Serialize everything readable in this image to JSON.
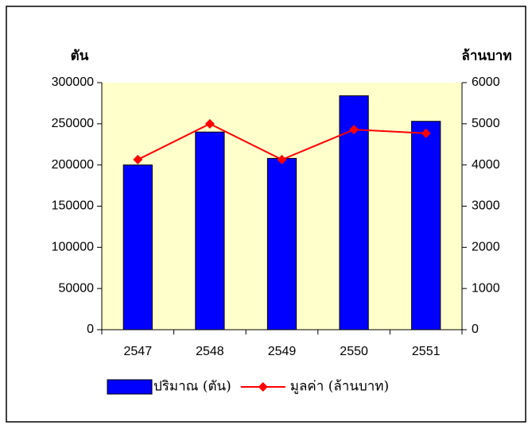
{
  "chart_data": {
    "type": "bar_line",
    "y_label": "ตัน",
    "y2_label": "ล้านบาท",
    "categories": [
      "2547",
      "2548",
      "2549",
      "2550",
      "2551"
    ],
    "series": [
      {
        "name": "ปริมาณ (ตัน)",
        "type": "bar",
        "color": "#0000ff",
        "values": [
          200000,
          240000,
          208000,
          284000,
          253000
        ]
      },
      {
        "name": "มูลค่า (ล้านบาท)",
        "type": "line",
        "color": "#ff0000",
        "axis": "y2",
        "values": [
          4130,
          5000,
          4130,
          4860,
          4770
        ]
      }
    ],
    "ylim": [
      0,
      300000
    ],
    "yticks": [
      0,
      50000,
      100000,
      150000,
      200000,
      250000,
      300000
    ],
    "y2lim": [
      0,
      6000
    ],
    "y2ticks": [
      0,
      1000,
      2000,
      3000,
      4000,
      5000,
      6000
    ],
    "plot_background": "#ffffcc",
    "legend": "bottom"
  }
}
